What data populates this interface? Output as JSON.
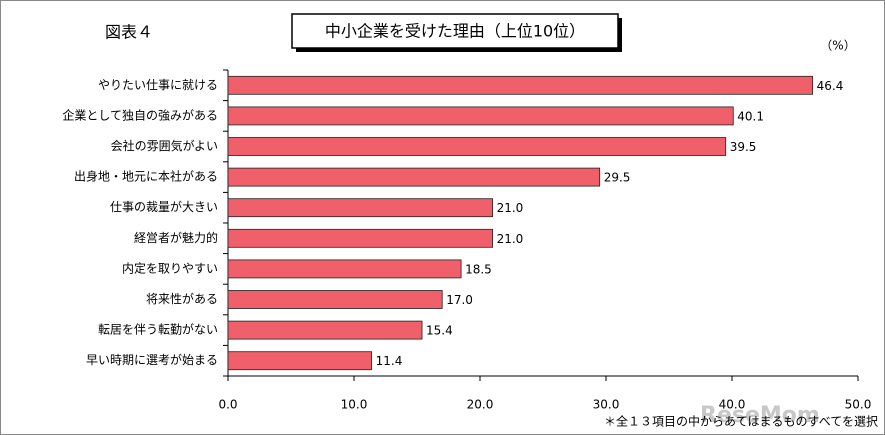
{
  "chart_data": {
    "type": "bar",
    "orientation": "horizontal",
    "figure_label": "図表４",
    "title": "中小企業を受けた理由（上位10位）",
    "unit_label": "（%）",
    "note": "＊全１３項目の中からあてはまるものすべてを選択",
    "watermark": "ReseMom",
    "categories": [
      "やりたい仕事に就ける",
      "企業として独自の強みがある",
      "会社の雰囲気がよい",
      "出身地・地元に本社がある",
      "仕事の裁量が大きい",
      "経営者が魅力的",
      "内定を取りやすい",
      "将来性がある",
      "転居を伴う転勤がない",
      "早い時期に選考が始まる"
    ],
    "values": [
      46.4,
      40.1,
      39.5,
      29.5,
      21.0,
      21.0,
      18.5,
      17.0,
      15.4,
      11.4
    ],
    "value_labels": [
      "46.4",
      "40.1",
      "39.5",
      "29.5",
      "21.0",
      "21.0",
      "18.5",
      "17.0",
      "15.4",
      "11.4"
    ],
    "color": "#f0606b",
    "xlim": [
      0,
      50
    ],
    "xticks": [
      {
        "value": 0,
        "label": "0.0"
      },
      {
        "value": 10,
        "label": "10.0"
      },
      {
        "value": 20,
        "label": "20.0"
      },
      {
        "value": 30,
        "label": "30.0"
      },
      {
        "value": 40,
        "label": "40.0"
      },
      {
        "value": 50,
        "label": "50.0"
      }
    ],
    "grid": false
  }
}
